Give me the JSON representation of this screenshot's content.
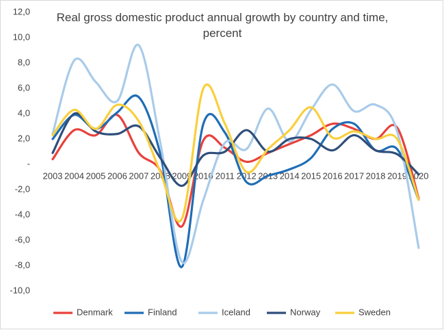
{
  "chart_data": {
    "type": "line",
    "title": "Real gross domestic product annual growth by country and time, percent",
    "categories": [
      "2003",
      "2004",
      "2005",
      "2006",
      "2007",
      "2008",
      "2009",
      "2010",
      "2011",
      "2012",
      "2013",
      "2014",
      "2015",
      "2016",
      "2017",
      "2018",
      "2019",
      "2020"
    ],
    "series": [
      {
        "name": "Denmark",
        "color": "#e8413c",
        "values": [
          0.4,
          2.7,
          2.3,
          3.9,
          0.9,
          -0.5,
          -4.9,
          1.9,
          1.3,
          0.2,
          0.9,
          1.6,
          2.3,
          3.2,
          2.8,
          2.0,
          2.9,
          -2.7
        ]
      },
      {
        "name": "Finland",
        "color": "#1f6db5",
        "values": [
          2.0,
          3.9,
          2.8,
          4.1,
          5.3,
          0.8,
          -8.1,
          3.2,
          2.5,
          -1.4,
          -0.9,
          -0.4,
          0.5,
          2.8,
          3.2,
          1.1,
          1.2,
          -2.8
        ]
      },
      {
        "name": "Iceland",
        "color": "#a9cbe9",
        "values": [
          2.4,
          8.2,
          6.5,
          5.0,
          9.4,
          1.7,
          -7.7,
          -2.8,
          1.7,
          1.2,
          4.4,
          1.8,
          4.3,
          6.3,
          4.2,
          4.7,
          2.6,
          -6.6
        ]
      },
      {
        "name": "Norway",
        "color": "#2f4e7a",
        "values": [
          0.9,
          4.0,
          2.6,
          2.4,
          3.0,
          0.5,
          -1.7,
          0.7,
          1.0,
          2.7,
          1.0,
          2.0,
          2.0,
          1.1,
          2.3,
          1.1,
          0.8,
          -0.8
        ]
      },
      {
        "name": "Sweden",
        "color": "#f9cf3c",
        "values": [
          2.3,
          4.3,
          2.8,
          4.7,
          3.4,
          -0.6,
          -4.3,
          6.0,
          3.2,
          -0.6,
          1.2,
          2.7,
          4.5,
          2.1,
          2.6,
          2.0,
          2.0,
          -2.8
        ]
      }
    ],
    "ylim": [
      -10,
      12
    ],
    "yticks": [
      {
        "value": 12,
        "label": "12,0"
      },
      {
        "value": 10,
        "label": "10,0"
      },
      {
        "value": 8,
        "label": "8,0"
      },
      {
        "value": 6,
        "label": "6,0"
      },
      {
        "value": 4,
        "label": "4,0"
      },
      {
        "value": 2,
        "label": "2,0"
      },
      {
        "value": 0,
        "label": "-"
      },
      {
        "value": -2,
        "label": "-2,0"
      },
      {
        "value": -4,
        "label": "-4,0"
      },
      {
        "value": -6,
        "label": "-6,0"
      },
      {
        "value": -8,
        "label": "-8,0"
      },
      {
        "value": -10,
        "label": "-10,0"
      }
    ],
    "legend": "bottom"
  }
}
